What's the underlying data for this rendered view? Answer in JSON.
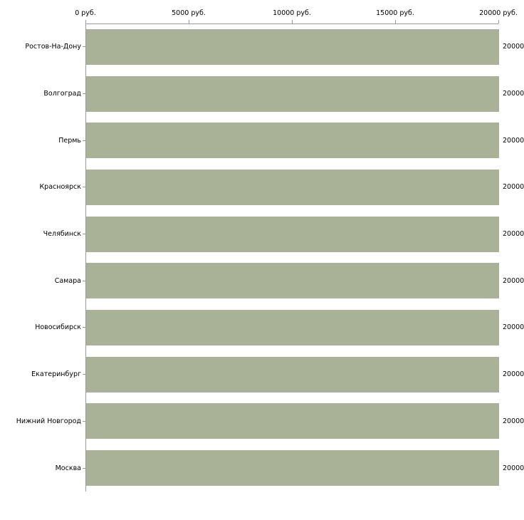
{
  "chart_data": {
    "type": "bar",
    "orientation": "horizontal",
    "title": "",
    "xlabel": "",
    "ylabel": "",
    "categories": [
      "Ростов-На-Дону",
      "Волгоград",
      "Пермь",
      "Красноярск",
      "Челябинск",
      "Самара",
      "Новосибирск",
      "Екатеринбург",
      "Нижний Новгород",
      "Москва"
    ],
    "values": [
      20000,
      20000,
      20000,
      20000,
      20000,
      20000,
      20000,
      20000,
      20000,
      20000
    ],
    "value_labels": [
      "20000",
      "20000",
      "20000",
      "20000",
      "20000",
      "20000",
      "20000",
      "20000",
      "20000",
      "20000"
    ],
    "x_ticks": [
      "0 руб.",
      "5000 руб.",
      "10000 руб.",
      "15000 руб.",
      "20000 руб."
    ],
    "x_tick_values": [
      0,
      5000,
      10000,
      15000,
      20000
    ],
    "xlim": [
      0,
      20000
    ],
    "grid": false,
    "legend": "none",
    "bar_color": "#a9b297",
    "axis_color": "#9a9a9a",
    "background_color": "#ffffff"
  }
}
